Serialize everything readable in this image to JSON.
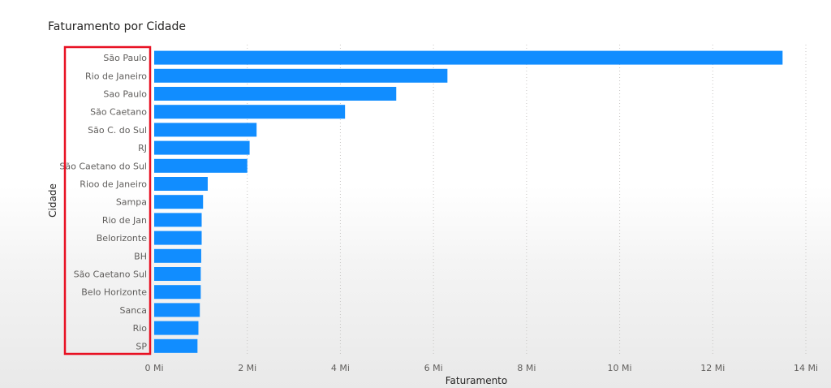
{
  "chart_data": {
    "type": "bar",
    "orientation": "horizontal",
    "title": "Faturamento por Cidade",
    "xlabel": "Faturamento",
    "ylabel": "Cidade",
    "categories": [
      "São Paulo",
      "Rio de Janeiro",
      "Sao Paulo",
      "São Caetano",
      "São C. do Sul",
      "RJ",
      "São Caetano do Sul",
      "Rioo de Janeiro",
      "Sampa",
      "Rio de Jan",
      "Belorizonte",
      "BH",
      "São Caetano Sul",
      "Belo Horizonte",
      "Sanca",
      "Rio",
      "SP"
    ],
    "values": [
      13.5,
      6.3,
      5.2,
      4.1,
      2.2,
      2.05,
      2.0,
      1.15,
      1.05,
      1.02,
      1.02,
      1.01,
      1.0,
      1.0,
      0.98,
      0.95,
      0.93
    ],
    "unit": "Mi",
    "xticks": [
      "0 Mi",
      "2 Mi",
      "4 Mi",
      "6 Mi",
      "8 Mi",
      "10 Mi",
      "12 Mi",
      "14 Mi"
    ],
    "xlim": [
      0,
      14
    ],
    "grid": true,
    "bar_color": "#118DFF",
    "highlight_color": "#E81123"
  }
}
